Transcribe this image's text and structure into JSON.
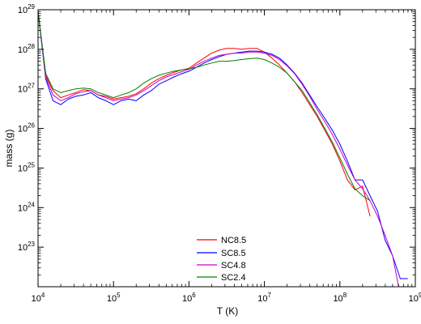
{
  "chart_data": {
    "type": "line",
    "xlabel": "T (K)",
    "ylabel": "mass (g)",
    "xscale": "log",
    "yscale": "log",
    "xlim": [
      10000,
      1000000000
    ],
    "ylim": [
      1e+22,
      1e+29
    ],
    "x_ticks": [
      {
        "value": 10000,
        "base": "10",
        "exp": "4"
      },
      {
        "value": 100000,
        "base": "10",
        "exp": "5"
      },
      {
        "value": 1000000,
        "base": "10",
        "exp": "6"
      },
      {
        "value": 10000000,
        "base": "10",
        "exp": "7"
      },
      {
        "value": 100000000,
        "base": "10",
        "exp": "8"
      },
      {
        "value": 1000000000,
        "base": "10",
        "exp": "9"
      }
    ],
    "y_ticks": [
      {
        "value": 1e+23,
        "base": "10",
        "exp": "23"
      },
      {
        "value": 1e+24,
        "base": "10",
        "exp": "24"
      },
      {
        "value": 1e+25,
        "base": "10",
        "exp": "25"
      },
      {
        "value": 1e+26,
        "base": "10",
        "exp": "26"
      },
      {
        "value": 1e+27,
        "base": "10",
        "exp": "27"
      },
      {
        "value": 1e+28,
        "base": "10",
        "exp": "28"
      },
      {
        "value": 1e+29,
        "base": "10",
        "exp": "29"
      }
    ],
    "grid": false,
    "legend_position": "bottom-center",
    "series": [
      {
        "name": "NC8.5",
        "color": "#ff0000",
        "points": [
          [
            10000,
            9e+28
          ],
          [
            12600,
            2.2e+27
          ],
          [
            15800,
            9e+26
          ],
          [
            20000,
            6e+26
          ],
          [
            25100,
            7e+26
          ],
          [
            31600,
            8e+26
          ],
          [
            39800,
            9.5e+26
          ],
          [
            50100,
            9e+26
          ],
          [
            63100,
            7e+26
          ],
          [
            79400,
            6.5e+26
          ],
          [
            100000,
            5.5e+26
          ],
          [
            125900,
            6e+26
          ],
          [
            158500,
            6.5e+26
          ],
          [
            199500,
            7.5e+26
          ],
          [
            251200,
            1e+27
          ],
          [
            316200,
            1.4e+27
          ],
          [
            398100,
            1.8e+27
          ],
          [
            501200,
            2.2e+27
          ],
          [
            631000,
            2.6e+27
          ],
          [
            794300,
            3e+27
          ],
          [
            1000000,
            3.3e+27
          ],
          [
            1259000,
            4.5e+27
          ],
          [
            1585000,
            6e+27
          ],
          [
            1995000,
            8e+27
          ],
          [
            2512000,
            9.5e+27
          ],
          [
            3162000,
            1.05e+28
          ],
          [
            3981000,
            1.05e+28
          ],
          [
            5012000,
            1e+28
          ],
          [
            6310000,
            1.05e+28
          ],
          [
            7943000,
            1.05e+28
          ],
          [
            10000000,
            8.5e+27
          ],
          [
            12590000,
            6e+27
          ],
          [
            15850000,
            4e+27
          ],
          [
            19950000,
            2.5e+27
          ],
          [
            25120000,
            1.5e+27
          ],
          [
            31620000,
            8e+26
          ],
          [
            39810000,
            4e+26
          ],
          [
            50120000,
            2e+26
          ],
          [
            63100000,
            9e+25
          ],
          [
            79430000,
            4e+25
          ],
          [
            100000000,
            1.5e+25
          ],
          [
            125900000,
            5e+24
          ],
          [
            158500000,
            2.8e+24
          ],
          [
            199500000,
            3.5e+24
          ],
          [
            251200000,
            6e+23
          ]
        ]
      },
      {
        "name": "SC8.5",
        "color": "#0000ff",
        "points": [
          [
            10000,
            9e+28
          ],
          [
            12600,
            1.8e+27
          ],
          [
            15800,
            5e+26
          ],
          [
            20000,
            4e+26
          ],
          [
            25100,
            5.5e+26
          ],
          [
            31600,
            6.5e+26
          ],
          [
            39800,
            7e+26
          ],
          [
            50100,
            8e+26
          ],
          [
            63100,
            6e+26
          ],
          [
            79400,
            5e+26
          ],
          [
            100000,
            4e+26
          ],
          [
            125900,
            5e+26
          ],
          [
            158500,
            5.5e+26
          ],
          [
            199500,
            5e+26
          ],
          [
            251200,
            7e+26
          ],
          [
            316200,
            9e+26
          ],
          [
            398100,
            1.3e+27
          ],
          [
            501200,
            1.6e+27
          ],
          [
            631000,
            2e+27
          ],
          [
            794300,
            2.4e+27
          ],
          [
            1000000,
            2.8e+27
          ],
          [
            1259000,
            3.5e+27
          ],
          [
            1585000,
            4.5e+27
          ],
          [
            1995000,
            5.5e+27
          ],
          [
            2512000,
            6.5e+27
          ],
          [
            3162000,
            7.5e+27
          ],
          [
            3981000,
            8e+27
          ],
          [
            5012000,
            8.5e+27
          ],
          [
            6310000,
            9e+27
          ],
          [
            7943000,
            9e+27
          ],
          [
            10000000,
            8.5e+27
          ],
          [
            12590000,
            7.5e+27
          ],
          [
            15850000,
            6e+27
          ],
          [
            19950000,
            4e+27
          ],
          [
            25120000,
            2.5e+27
          ],
          [
            31620000,
            1.4e+27
          ],
          [
            39810000,
            7e+26
          ],
          [
            50120000,
            3.5e+26
          ],
          [
            63100000,
            1.8e+26
          ],
          [
            79430000,
            9e+25
          ],
          [
            100000000,
            4e+25
          ],
          [
            125900000,
            1.5e+25
          ],
          [
            158500000,
            5e+24
          ],
          [
            199500000,
            5e+24
          ],
          [
            251200000,
            2e+24
          ],
          [
            316200000,
            8e+23
          ],
          [
            398100000,
            1.5e+23
          ],
          [
            501200000,
            6e+22
          ],
          [
            631000000,
            1.6e+22
          ],
          [
            794300000,
            1.6e+22
          ]
        ]
      },
      {
        "name": "SC4.8",
        "color": "#cc00cc",
        "points": [
          [
            10000,
            9e+28
          ],
          [
            12600,
            2e+27
          ],
          [
            15800,
            7e+26
          ],
          [
            20000,
            5e+26
          ],
          [
            25100,
            6e+26
          ],
          [
            31600,
            7.5e+26
          ],
          [
            39800,
            8.5e+26
          ],
          [
            50100,
            9e+26
          ],
          [
            63100,
            7e+26
          ],
          [
            79400,
            6e+26
          ],
          [
            100000,
            5e+26
          ],
          [
            125900,
            5.5e+26
          ],
          [
            158500,
            6e+26
          ],
          [
            199500,
            7e+26
          ],
          [
            251200,
            9e+26
          ],
          [
            316200,
            1.2e+27
          ],
          [
            398100,
            1.6e+27
          ],
          [
            501200,
            2e+27
          ],
          [
            631000,
            2.3e+27
          ],
          [
            794300,
            2.7e+27
          ],
          [
            1000000,
            3.1e+27
          ],
          [
            1259000,
            4e+27
          ],
          [
            1585000,
            5e+27
          ],
          [
            1995000,
            6e+27
          ],
          [
            2512000,
            7e+27
          ],
          [
            3162000,
            7.5e+27
          ],
          [
            3981000,
            8e+27
          ],
          [
            5012000,
            8e+27
          ],
          [
            6310000,
            8.5e+27
          ],
          [
            7943000,
            8.5e+27
          ],
          [
            10000000,
            8e+27
          ],
          [
            12590000,
            7e+27
          ],
          [
            15850000,
            5.5e+27
          ],
          [
            19950000,
            3.8e+27
          ],
          [
            25120000,
            2.4e+27
          ],
          [
            31620000,
            1.3e+27
          ],
          [
            39810000,
            6.5e+26
          ],
          [
            50120000,
            3e+26
          ],
          [
            63100000,
            1.5e+26
          ],
          [
            79430000,
            7e+25
          ],
          [
            100000000,
            3e+25
          ],
          [
            125900000,
            1.2e+25
          ],
          [
            158500000,
            5e+24
          ],
          [
            199500000,
            3e+24
          ],
          [
            251200000,
            1.5e+24
          ],
          [
            316200000,
            6e+23
          ],
          [
            398100000,
            2e+23
          ],
          [
            501200000,
            6e+22
          ],
          [
            631000000,
            6e+21
          ]
        ]
      },
      {
        "name": "SC2.4",
        "color": "#008000",
        "points": [
          [
            10000,
            9e+28
          ],
          [
            12600,
            2.5e+27
          ],
          [
            15800,
            1e+27
          ],
          [
            20000,
            8e+26
          ],
          [
            25100,
            9e+26
          ],
          [
            31600,
            1e+27
          ],
          [
            39800,
            1.05e+27
          ],
          [
            50100,
            1e+27
          ],
          [
            63100,
            8e+26
          ],
          [
            79400,
            7e+26
          ],
          [
            100000,
            6e+26
          ],
          [
            125900,
            7e+26
          ],
          [
            158500,
            8e+26
          ],
          [
            199500,
            1e+27
          ],
          [
            251200,
            1.4e+27
          ],
          [
            316200,
            1.8e+27
          ],
          [
            398100,
            2.2e+27
          ],
          [
            501200,
            2.5e+27
          ],
          [
            631000,
            2.8e+27
          ],
          [
            794300,
            3e+27
          ],
          [
            1000000,
            3.2e+27
          ],
          [
            1259000,
            3.5e+27
          ],
          [
            1585000,
            4e+27
          ],
          [
            1995000,
            4.5e+27
          ],
          [
            2512000,
            5e+27
          ],
          [
            3162000,
            5e+27
          ],
          [
            3981000,
            5.2e+27
          ],
          [
            5012000,
            5.5e+27
          ],
          [
            6310000,
            5.8e+27
          ],
          [
            7943000,
            6e+27
          ],
          [
            10000000,
            5.5e+27
          ],
          [
            12590000,
            4.5e+27
          ],
          [
            15850000,
            3.5e+27
          ],
          [
            19950000,
            2.5e+27
          ],
          [
            25120000,
            1.5e+27
          ],
          [
            31620000,
            9e+26
          ],
          [
            39810000,
            4.5e+26
          ],
          [
            50120000,
            2.2e+26
          ],
          [
            63100000,
            1e+26
          ],
          [
            79430000,
            4.5e+25
          ],
          [
            100000000,
            1.8e+25
          ],
          [
            125900000,
            7e+24
          ],
          [
            158500000,
            3e+24
          ],
          [
            199500000,
            2e+24
          ],
          [
            251200000,
            1.5e+24
          ]
        ]
      }
    ]
  }
}
